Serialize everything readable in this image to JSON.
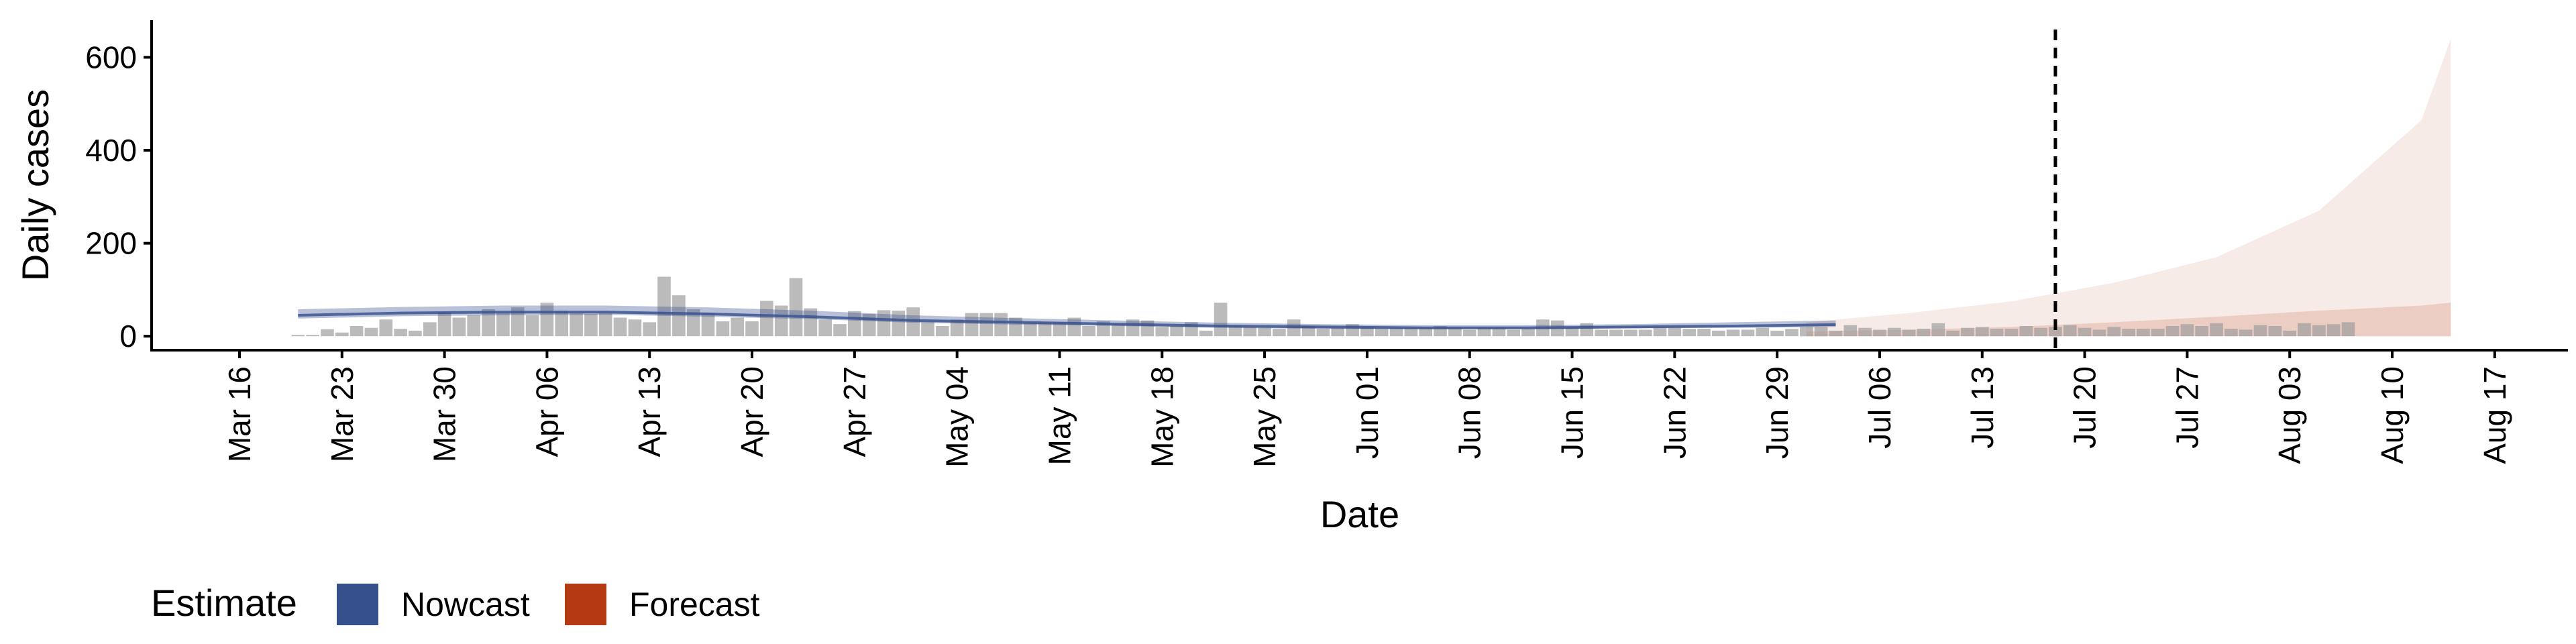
{
  "chart_data": {
    "type": "bar",
    "title": "",
    "xlabel": "Date",
    "ylabel": "Daily cases",
    "ylim": [
      -30,
      680
    ],
    "yticks": [
      0,
      200,
      400,
      600
    ],
    "xlim": [
      "2020-03-10",
      "2020-08-22"
    ],
    "xticks": [
      "2020-03-16",
      "2020-03-23",
      "2020-03-30",
      "2020-04-06",
      "2020-04-13",
      "2020-04-20",
      "2020-04-27",
      "2020-05-04",
      "2020-05-11",
      "2020-05-18",
      "2020-05-25",
      "2020-06-01",
      "2020-06-08",
      "2020-06-15",
      "2020-06-22",
      "2020-06-29",
      "2020-07-06",
      "2020-07-13",
      "2020-07-20",
      "2020-07-27",
      "2020-08-03",
      "2020-08-10",
      "2020-08-17"
    ],
    "xtick_labels": [
      "Mar 16",
      "Mar 23",
      "Mar 30",
      "Apr 06",
      "Apr 13",
      "Apr 20",
      "Apr 27",
      "May 04",
      "May 11",
      "May 18",
      "May 25",
      "Jun 01",
      "Jun 08",
      "Jun 15",
      "Jun 22",
      "Jun 29",
      "Jul 06",
      "Jul 13",
      "Jul 20",
      "Jul 27",
      "Aug 03",
      "Aug 10",
      "Aug 17"
    ],
    "grid": false,
    "legend_placement": "bottom-left",
    "vline_date": "2020-07-18",
    "bars": {
      "start_date": "2020-03-20",
      "values": [
        2,
        0,
        15,
        8,
        22,
        18,
        36,
        16,
        12,
        30,
        52,
        40,
        45,
        58,
        50,
        62,
        45,
        72,
        55,
        50,
        48,
        50,
        40,
        36,
        30,
        128,
        88,
        58,
        50,
        32,
        40,
        32,
        76,
        66,
        125,
        60,
        36,
        26,
        54,
        48,
        56,
        55,
        62,
        30,
        22,
        36,
        50,
        50,
        50,
        40,
        30,
        30,
        30,
        40,
        22,
        32,
        26,
        36,
        34,
        20,
        22,
        30,
        12,
        72,
        22,
        20,
        18,
        16,
        36,
        22,
        16,
        18,
        26,
        20,
        16,
        18,
        18,
        18,
        22,
        18,
        14,
        18,
        18,
        14,
        16,
        36,
        34,
        20,
        28,
        14,
        14,
        14,
        14,
        18,
        18,
        16,
        16,
        12,
        14,
        14,
        18,
        12,
        16,
        20,
        20,
        12,
        24,
        18,
        14,
        18,
        14,
        16,
        28,
        12,
        18,
        20,
        16,
        16,
        22,
        18,
        20,
        24,
        18,
        14,
        20,
        16,
        16,
        16,
        22,
        26,
        22,
        28,
        16,
        14,
        24,
        22,
        12,
        28,
        24,
        26,
        30
      ]
    },
    "series": [
      {
        "name": "Nowcast",
        "color": "#354e8c",
        "band_opacity": 0.35,
        "x": [
          "2020-03-20",
          "2020-03-27",
          "2020-04-03",
          "2020-04-10",
          "2020-04-17",
          "2020-04-24",
          "2020-05-01",
          "2020-05-08",
          "2020-05-15",
          "2020-05-22",
          "2020-05-29",
          "2020-06-05",
          "2020-06-12",
          "2020-06-19",
          "2020-06-26",
          "2020-07-03"
        ],
        "median": [
          45,
          50,
          52,
          52,
          48,
          42,
          34,
          30,
          26,
          22,
          20,
          18,
          18,
          20,
          22,
          25
        ],
        "lower": [
          38,
          43,
          45,
          46,
          42,
          37,
          29,
          25,
          22,
          18,
          16,
          15,
          15,
          17,
          18,
          20
        ],
        "upper": [
          58,
          63,
          66,
          66,
          62,
          55,
          45,
          39,
          34,
          29,
          26,
          24,
          24,
          26,
          30,
          34
        ]
      },
      {
        "name": "Forecast",
        "color": "#b53a12",
        "x": [
          "2020-07-01",
          "2020-07-08",
          "2020-07-15",
          "2020-07-22",
          "2020-07-29",
          "2020-08-05",
          "2020-08-12",
          "2020-08-14"
        ],
        "lower": [
          0,
          0,
          0,
          0,
          0,
          0,
          0,
          0
        ],
        "inner_upper": [
          10,
          14,
          20,
          30,
          42,
          55,
          66,
          72
        ],
        "outer_upper": [
          30,
          50,
          75,
          115,
          170,
          270,
          465,
          640
        ]
      }
    ]
  },
  "legend": {
    "title": "Estimate",
    "items": [
      {
        "label": "Nowcast",
        "color": "#354e8c"
      },
      {
        "label": "Forecast",
        "color": "#b53a12"
      }
    ]
  }
}
